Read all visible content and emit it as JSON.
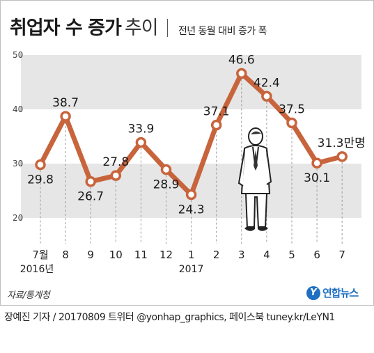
{
  "header": {
    "title_main": "취업자 수 증가",
    "title_light": "추이",
    "subtitle": "전년 동월 대비 증가 폭"
  },
  "footer": {
    "source": "자료/통계청",
    "logo_text": "연합뉴스",
    "credit": "장예진 기자 / 20170809 트위터 @yonhap_graphics, 페이스북 tuney.kr/LeYN1"
  },
  "chart_data": {
    "type": "line",
    "categories": [
      "7월\n2016년",
      "8",
      "9",
      "10",
      "11",
      "12",
      "1\n2017",
      "2",
      "3",
      "4",
      "5",
      "6",
      "7"
    ],
    "series": [
      {
        "values": [
          29.8,
          38.7,
          26.7,
          27.8,
          33.9,
          28.9,
          24.3,
          37.1,
          46.6,
          42.4,
          37.5,
          30.1,
          31.3
        ]
      }
    ],
    "data_labels": [
      "29.8",
      "38.7",
      "26.7",
      "27.8",
      "33.9",
      "28.9",
      "24.3",
      "37.1",
      "46.6",
      "42.4",
      "37.5",
      "30.1",
      "31.3만명"
    ],
    "y_ticks": [
      "20",
      "30",
      "40",
      "50"
    ],
    "ylim": [
      20,
      50
    ],
    "grid": true,
    "colors": {
      "line": "#c8643c",
      "band": "#e6e6e6",
      "marker_fill": "#ffffff"
    }
  }
}
